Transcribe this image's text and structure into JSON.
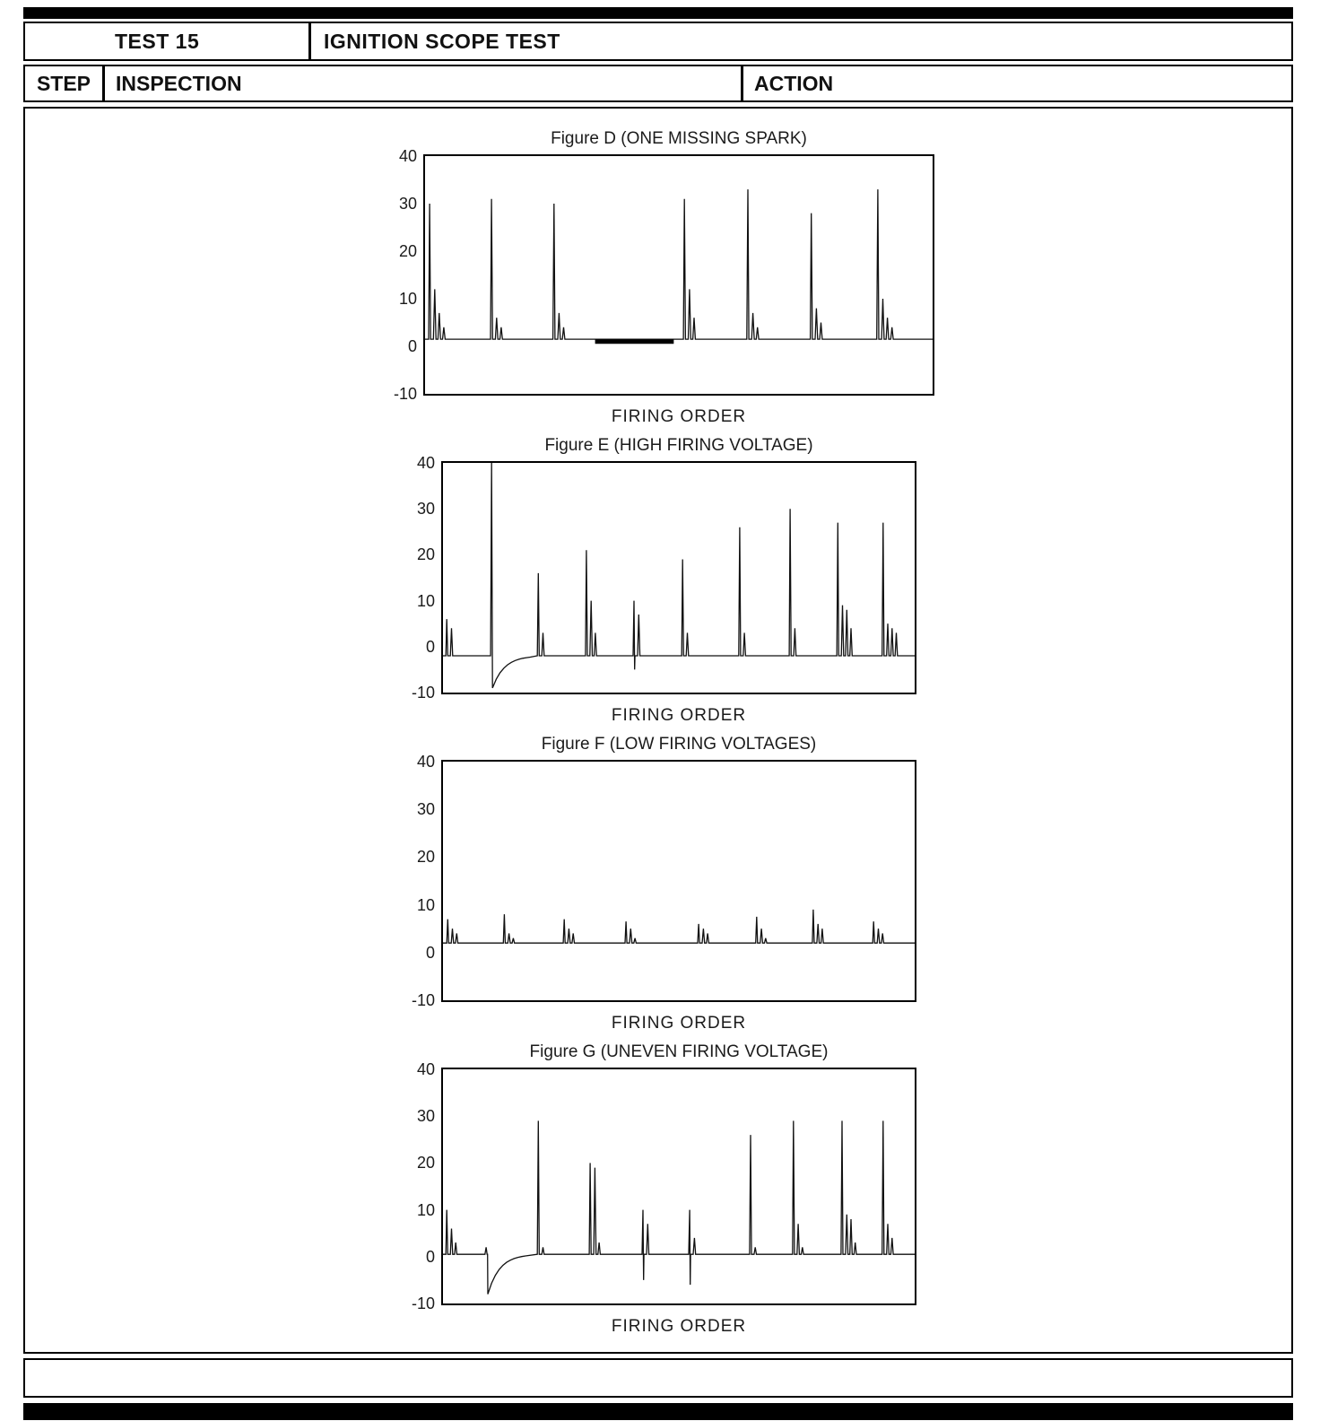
{
  "header": {
    "test_label": "TEST 15",
    "test_title": "IGNITION SCOPE TEST",
    "col_step": "STEP",
    "col_inspection": "INSPECTION",
    "col_action": "ACTION"
  },
  "chart_data": [
    {
      "type": "line",
      "title": "Figure D (ONE MISSING SPARK)",
      "xlabel": "FIRING ORDER",
      "ylim": [
        -10,
        40
      ],
      "yticks": [
        40,
        30,
        20,
        10,
        0,
        -10
      ],
      "baseline": 1.5,
      "events": [
        {
          "x": 0.9,
          "peak": 30,
          "osc": [
            12,
            7,
            4
          ]
        },
        {
          "x": 13.1,
          "peak": 31,
          "osc": [
            6,
            4
          ]
        },
        {
          "x": 25.4,
          "peak": 30,
          "osc": [
            7,
            4
          ]
        },
        {
          "x": 51.1,
          "peak": 31,
          "osc": [
            12,
            6
          ]
        },
        {
          "x": 63.6,
          "peak": 33,
          "osc": [
            7,
            4
          ]
        },
        {
          "x": 76.1,
          "peak": 28,
          "osc": [
            8,
            5
          ]
        },
        {
          "x": 89.2,
          "peak": 33,
          "osc": [
            10,
            6,
            4
          ]
        }
      ],
      "missing_region": {
        "x_start": 33.5,
        "x_end": 49.0,
        "level": 1
      }
    },
    {
      "type": "line",
      "title": "Figure E (HIGH FIRING VOLTAGE)",
      "xlabel": "FIRING ORDER",
      "ylim": [
        -10,
        40
      ],
      "yticks": [
        40,
        30,
        20,
        10,
        0,
        -10
      ],
      "baseline": -2,
      "events": [
        {
          "x": 0.8,
          "peak": 6,
          "osc": [
            4
          ]
        },
        {
          "x": 10.3,
          "peak": 40,
          "after_dip": {
            "depth": -9,
            "recover": 8
          }
        },
        {
          "x": 20.2,
          "peak": 16,
          "osc": [
            3
          ]
        },
        {
          "x": 30.4,
          "peak": 21,
          "osc": [
            10,
            3
          ]
        },
        {
          "x": 40.5,
          "peak": 10,
          "under": -5,
          "osc": [
            7
          ]
        },
        {
          "x": 50.8,
          "peak": 19,
          "osc": [
            3
          ]
        },
        {
          "x": 62.9,
          "peak": 26,
          "osc": [
            3
          ]
        },
        {
          "x": 73.6,
          "peak": 30,
          "osc": [
            4
          ]
        },
        {
          "x": 83.7,
          "peak": 27,
          "osc": [
            9,
            8,
            4
          ]
        },
        {
          "x": 93.3,
          "peak": 27,
          "osc": [
            5,
            4,
            3
          ]
        }
      ]
    },
    {
      "type": "line",
      "title": "Figure F (LOW FIRING VOLTAGES)",
      "xlabel": "FIRING ORDER",
      "ylim": [
        -10,
        40
      ],
      "yticks": [
        40,
        30,
        20,
        10,
        0,
        -10
      ],
      "baseline": 2,
      "events": [
        {
          "x": 1.0,
          "peak": 7,
          "osc": [
            5,
            4
          ]
        },
        {
          "x": 13.0,
          "peak": 8,
          "osc": [
            4,
            3
          ]
        },
        {
          "x": 25.7,
          "peak": 7,
          "osc": [
            5,
            4
          ]
        },
        {
          "x": 38.8,
          "peak": 6.5,
          "osc": [
            5,
            3
          ]
        },
        {
          "x": 54.2,
          "peak": 6,
          "osc": [
            5,
            4
          ]
        },
        {
          "x": 66.5,
          "peak": 7.5,
          "osc": [
            5,
            3
          ]
        },
        {
          "x": 78.5,
          "peak": 9,
          "osc": [
            6,
            5
          ]
        },
        {
          "x": 91.3,
          "peak": 6.5,
          "osc": [
            5,
            4
          ]
        }
      ]
    },
    {
      "type": "line",
      "title": "Figure G (UNEVEN FIRING VOLTAGE)",
      "xlabel": "FIRING ORDER",
      "ylim": [
        -10,
        40
      ],
      "yticks": [
        40,
        30,
        20,
        10,
        0,
        -10
      ],
      "baseline": 0.5,
      "events": [
        {
          "x": 0.8,
          "peak": 10,
          "osc": [
            6,
            3
          ]
        },
        {
          "x": 9.5,
          "pre": 2,
          "dip": -8,
          "recover": 8
        },
        {
          "x": 20.2,
          "peak": 29,
          "osc": [
            2
          ]
        },
        {
          "x": 31.2,
          "peak": 20,
          "osc": [
            19,
            3
          ]
        },
        {
          "x": 42.4,
          "peak": 10,
          "under": -5,
          "osc": [
            7
          ]
        },
        {
          "x": 52.3,
          "peak": 10,
          "under": -6,
          "osc": [
            4
          ]
        },
        {
          "x": 65.2,
          "peak": 26,
          "osc": [
            2
          ]
        },
        {
          "x": 74.3,
          "peak": 29,
          "osc": [
            7,
            2
          ]
        },
        {
          "x": 84.6,
          "peak": 29,
          "osc": [
            9,
            8,
            3
          ]
        },
        {
          "x": 93.3,
          "peak": 29,
          "osc": [
            7,
            4
          ]
        }
      ]
    }
  ]
}
